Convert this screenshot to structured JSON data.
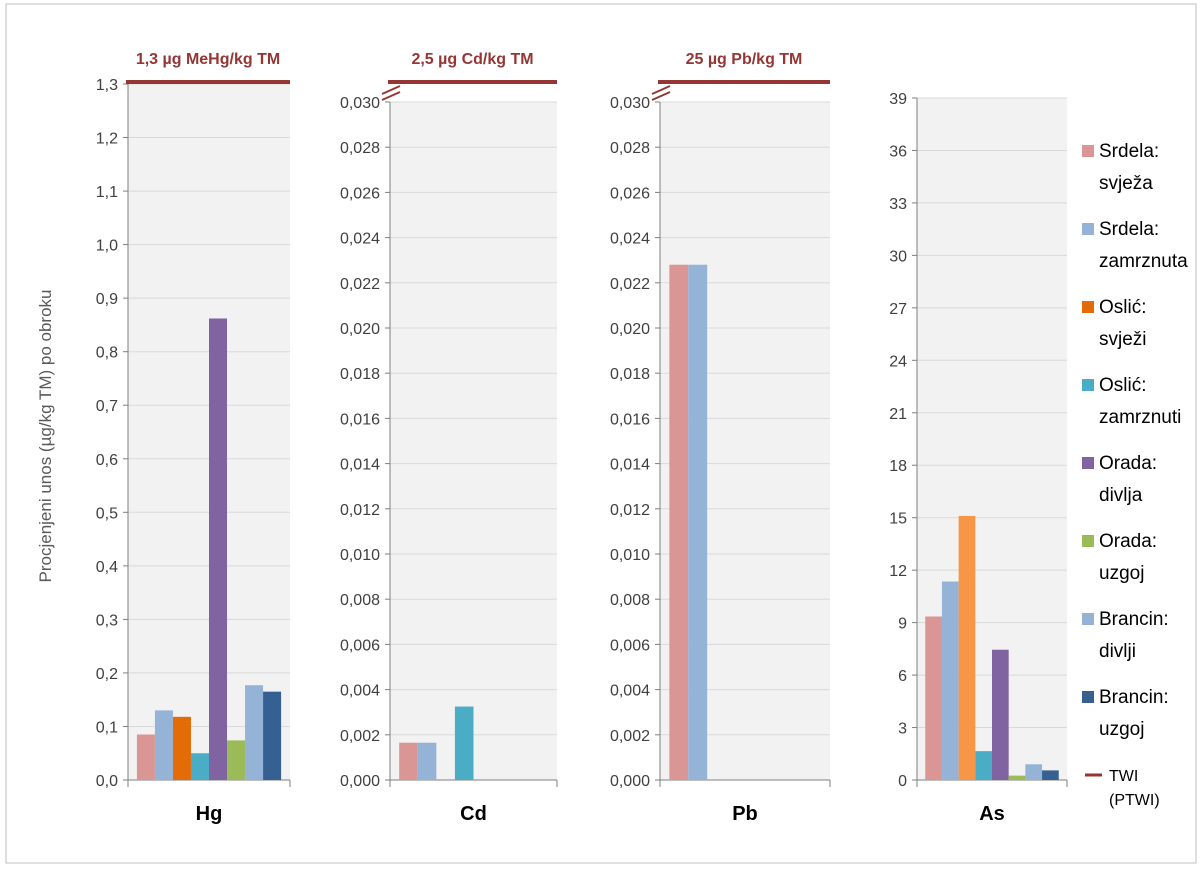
{
  "chart_data": [
    {
      "type": "bar",
      "xlabel": "Hg",
      "ylabel": "Procjenjeni unos (µg/kg TM) po obroku",
      "ylim": [
        0,
        1.3
      ],
      "yticks": [
        "0,0",
        "0,1",
        "0,2",
        "0,3",
        "0,4",
        "0,5",
        "0,6",
        "0,7",
        "0,8",
        "0,9",
        "1,0",
        "1,1",
        "1,2",
        "1,3"
      ],
      "reference_label": "1,3 µg MeHg/kg TM",
      "reference_value": 1.3,
      "axis_break": false,
      "series": [
        {
          "name": "Srdela: svježa",
          "value": 0.085
        },
        {
          "name": "Srdela: zamrznuta",
          "value": 0.13
        },
        {
          "name": "Oslić: svježi",
          "value": 0.118
        },
        {
          "name": "Oslić: zamrznuti",
          "value": 0.05
        },
        {
          "name": "Orada: divlja",
          "value": 0.862
        },
        {
          "name": "Orada: uzgoj",
          "value": 0.074
        },
        {
          "name": "Brancin: divlji",
          "value": 0.177
        },
        {
          "name": "Brancin: uzgoj",
          "value": 0.165
        }
      ]
    },
    {
      "type": "bar",
      "xlabel": "Cd",
      "ylim": [
        0,
        0.03
      ],
      "yticks": [
        "0,000",
        "0,002",
        "0,004",
        "0,006",
        "0,008",
        "0,010",
        "0,012",
        "0,014",
        "0,016",
        "0,018",
        "0,020",
        "0,022",
        "0,024",
        "0,026",
        "0,028",
        "0,030"
      ],
      "reference_label": "2,5 µg Cd/kg TM",
      "reference_value": 2.5,
      "axis_break": true,
      "series": [
        {
          "name": "Srdela: svježa",
          "value": 0.00165
        },
        {
          "name": "Srdela: zamrznuta",
          "value": 0.00165
        },
        {
          "name": "Oslić: svježi",
          "value": 0
        },
        {
          "name": "Oslić: zamrznuti",
          "value": 0.00325
        },
        {
          "name": "Orada: divlja",
          "value": 0
        },
        {
          "name": "Orada: uzgoj",
          "value": 0
        },
        {
          "name": "Brancin: divlji",
          "value": 0
        },
        {
          "name": "Brancin: uzgoj",
          "value": 0
        }
      ]
    },
    {
      "type": "bar",
      "xlabel": "Pb",
      "ylim": [
        0,
        0.03
      ],
      "yticks": [
        "0,000",
        "0,002",
        "0,004",
        "0,006",
        "0,008",
        "0,010",
        "0,012",
        "0,014",
        "0,016",
        "0,018",
        "0,020",
        "0,022",
        "0,024",
        "0,026",
        "0,028",
        "0,030"
      ],
      "reference_label": "25 µg Pb/kg TM",
      "reference_value": 25,
      "axis_break": true,
      "series": [
        {
          "name": "Srdela: svježa",
          "value": 0.0228
        },
        {
          "name": "Srdela: zamrznuta",
          "value": 0.0228
        },
        {
          "name": "Oslić: svježi",
          "value": 0
        },
        {
          "name": "Oslić: zamrznuti",
          "value": 0
        },
        {
          "name": "Orada: divlja",
          "value": 0
        },
        {
          "name": "Orada: uzgoj",
          "value": 0
        },
        {
          "name": "Brancin: divlji",
          "value": 0
        },
        {
          "name": "Brancin: uzgoj",
          "value": 0
        }
      ]
    },
    {
      "type": "bar",
      "xlabel": "As",
      "ylim": [
        0,
        40
      ],
      "yticks": [
        "0",
        "3",
        "6",
        "9",
        "12",
        "15",
        "18",
        "21",
        "24",
        "27",
        "30",
        "33",
        "36",
        "39"
      ],
      "tick_values": [
        0,
        3,
        6,
        9,
        12,
        15,
        18,
        21,
        24,
        27,
        30,
        33,
        36,
        39
      ],
      "axis_break": false,
      "series": [
        {
          "name": "Srdela: svježa",
          "value": 9.35
        },
        {
          "name": "Srdela: zamrznuta",
          "value": 11.35
        },
        {
          "name": "Oslić: svježi",
          "value": 15.1
        },
        {
          "name": "Oslić: zamrznuti",
          "value": 1.65
        },
        {
          "name": "Orada: divlja",
          "value": 7.45
        },
        {
          "name": "Orada: uzgoj",
          "value": 0.25
        },
        {
          "name": "Brancin: divlji",
          "value": 0.9
        },
        {
          "name": "Brancin: uzgoj",
          "value": 0.55
        }
      ]
    }
  ],
  "legend": {
    "placement": "right",
    "items": [
      {
        "line1": "Srdela:",
        "line2": "svježa",
        "color": "#D99694"
      },
      {
        "line1": "Srdela:",
        "line2": "zamrznuta",
        "color": "#95B3D7"
      },
      {
        "line1": "Oslić:",
        "line2": "svježi",
        "color": "#E36C09"
      },
      {
        "line1": "Oslić:",
        "line2": "zamrznuti",
        "color": "#4BACC6"
      },
      {
        "line1": "Orada:",
        "line2": "divlja",
        "color": "#8064A2"
      },
      {
        "line1": "Orada:",
        "line2": "uzgoj",
        "color": "#9BBB59"
      },
      {
        "line1": "Brancin:",
        "line2": "divlji",
        "color": "#95B3D7"
      },
      {
        "line1": "Brancin:",
        "line2": "uzgoj",
        "color": "#366092"
      }
    ],
    "reference": {
      "line1": "TWI",
      "line2": "(PTWI)",
      "color": "#943634"
    }
  },
  "colors": {
    "plot_bg": "#F2F2F2",
    "grid": "#D9D9D9",
    "axis": "#7F7F7F",
    "reference": "#943634",
    "arsenic_oslic_svjezi": "#F79646"
  }
}
